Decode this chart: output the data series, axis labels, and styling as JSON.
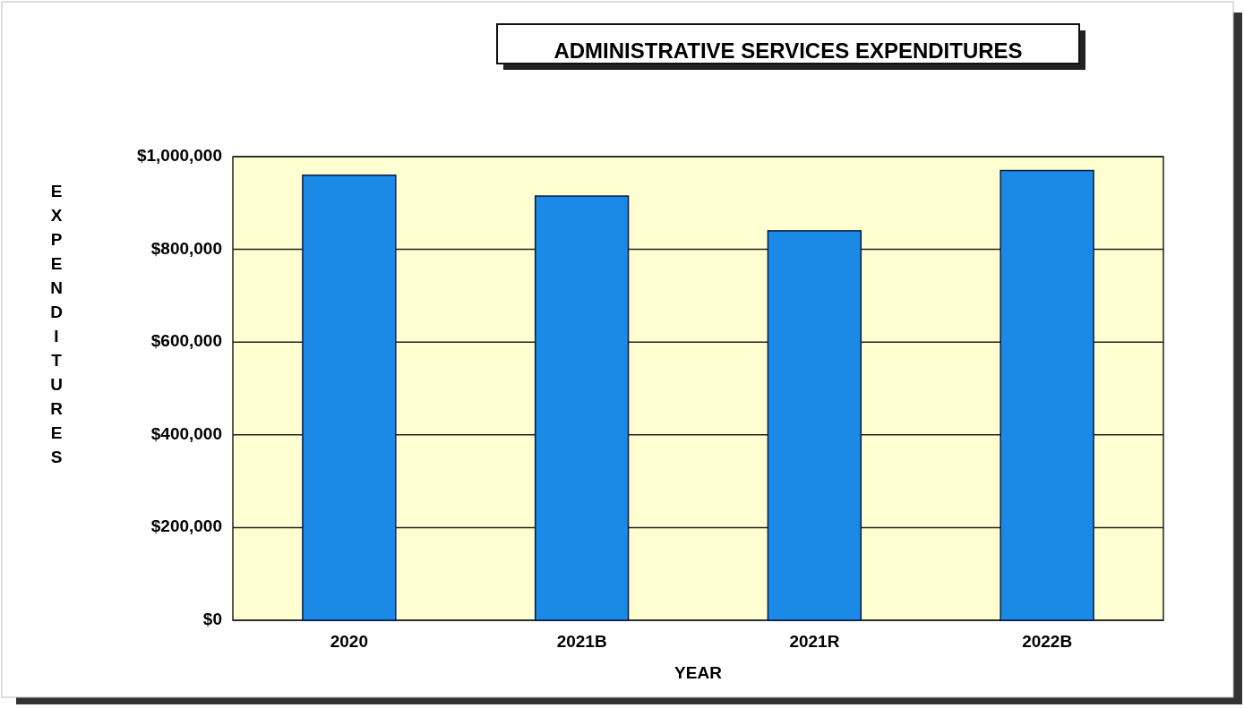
{
  "chart_data": {
    "type": "bar",
    "title": "ADMINISTRATIVE SERVICES EXPENDITURES",
    "xlabel": "YEAR",
    "ylabel": "EXPENDITURES",
    "categories": [
      "2020",
      "2021B",
      "2021R",
      "2022B"
    ],
    "values": [
      960000,
      915000,
      840000,
      970000
    ],
    "color": "#1a8ae6",
    "ylim": [
      0,
      1000000
    ],
    "yticks": [
      {
        "value": 0,
        "label": "$0"
      },
      {
        "value": 200000,
        "label": "$200,000"
      },
      {
        "value": 400000,
        "label": "$400,000"
      },
      {
        "value": 600000,
        "label": "$600,000"
      },
      {
        "value": 800000,
        "label": "$800,000"
      },
      {
        "value": 1000000,
        "label": "$1,000,000"
      }
    ],
    "grid": "y"
  }
}
